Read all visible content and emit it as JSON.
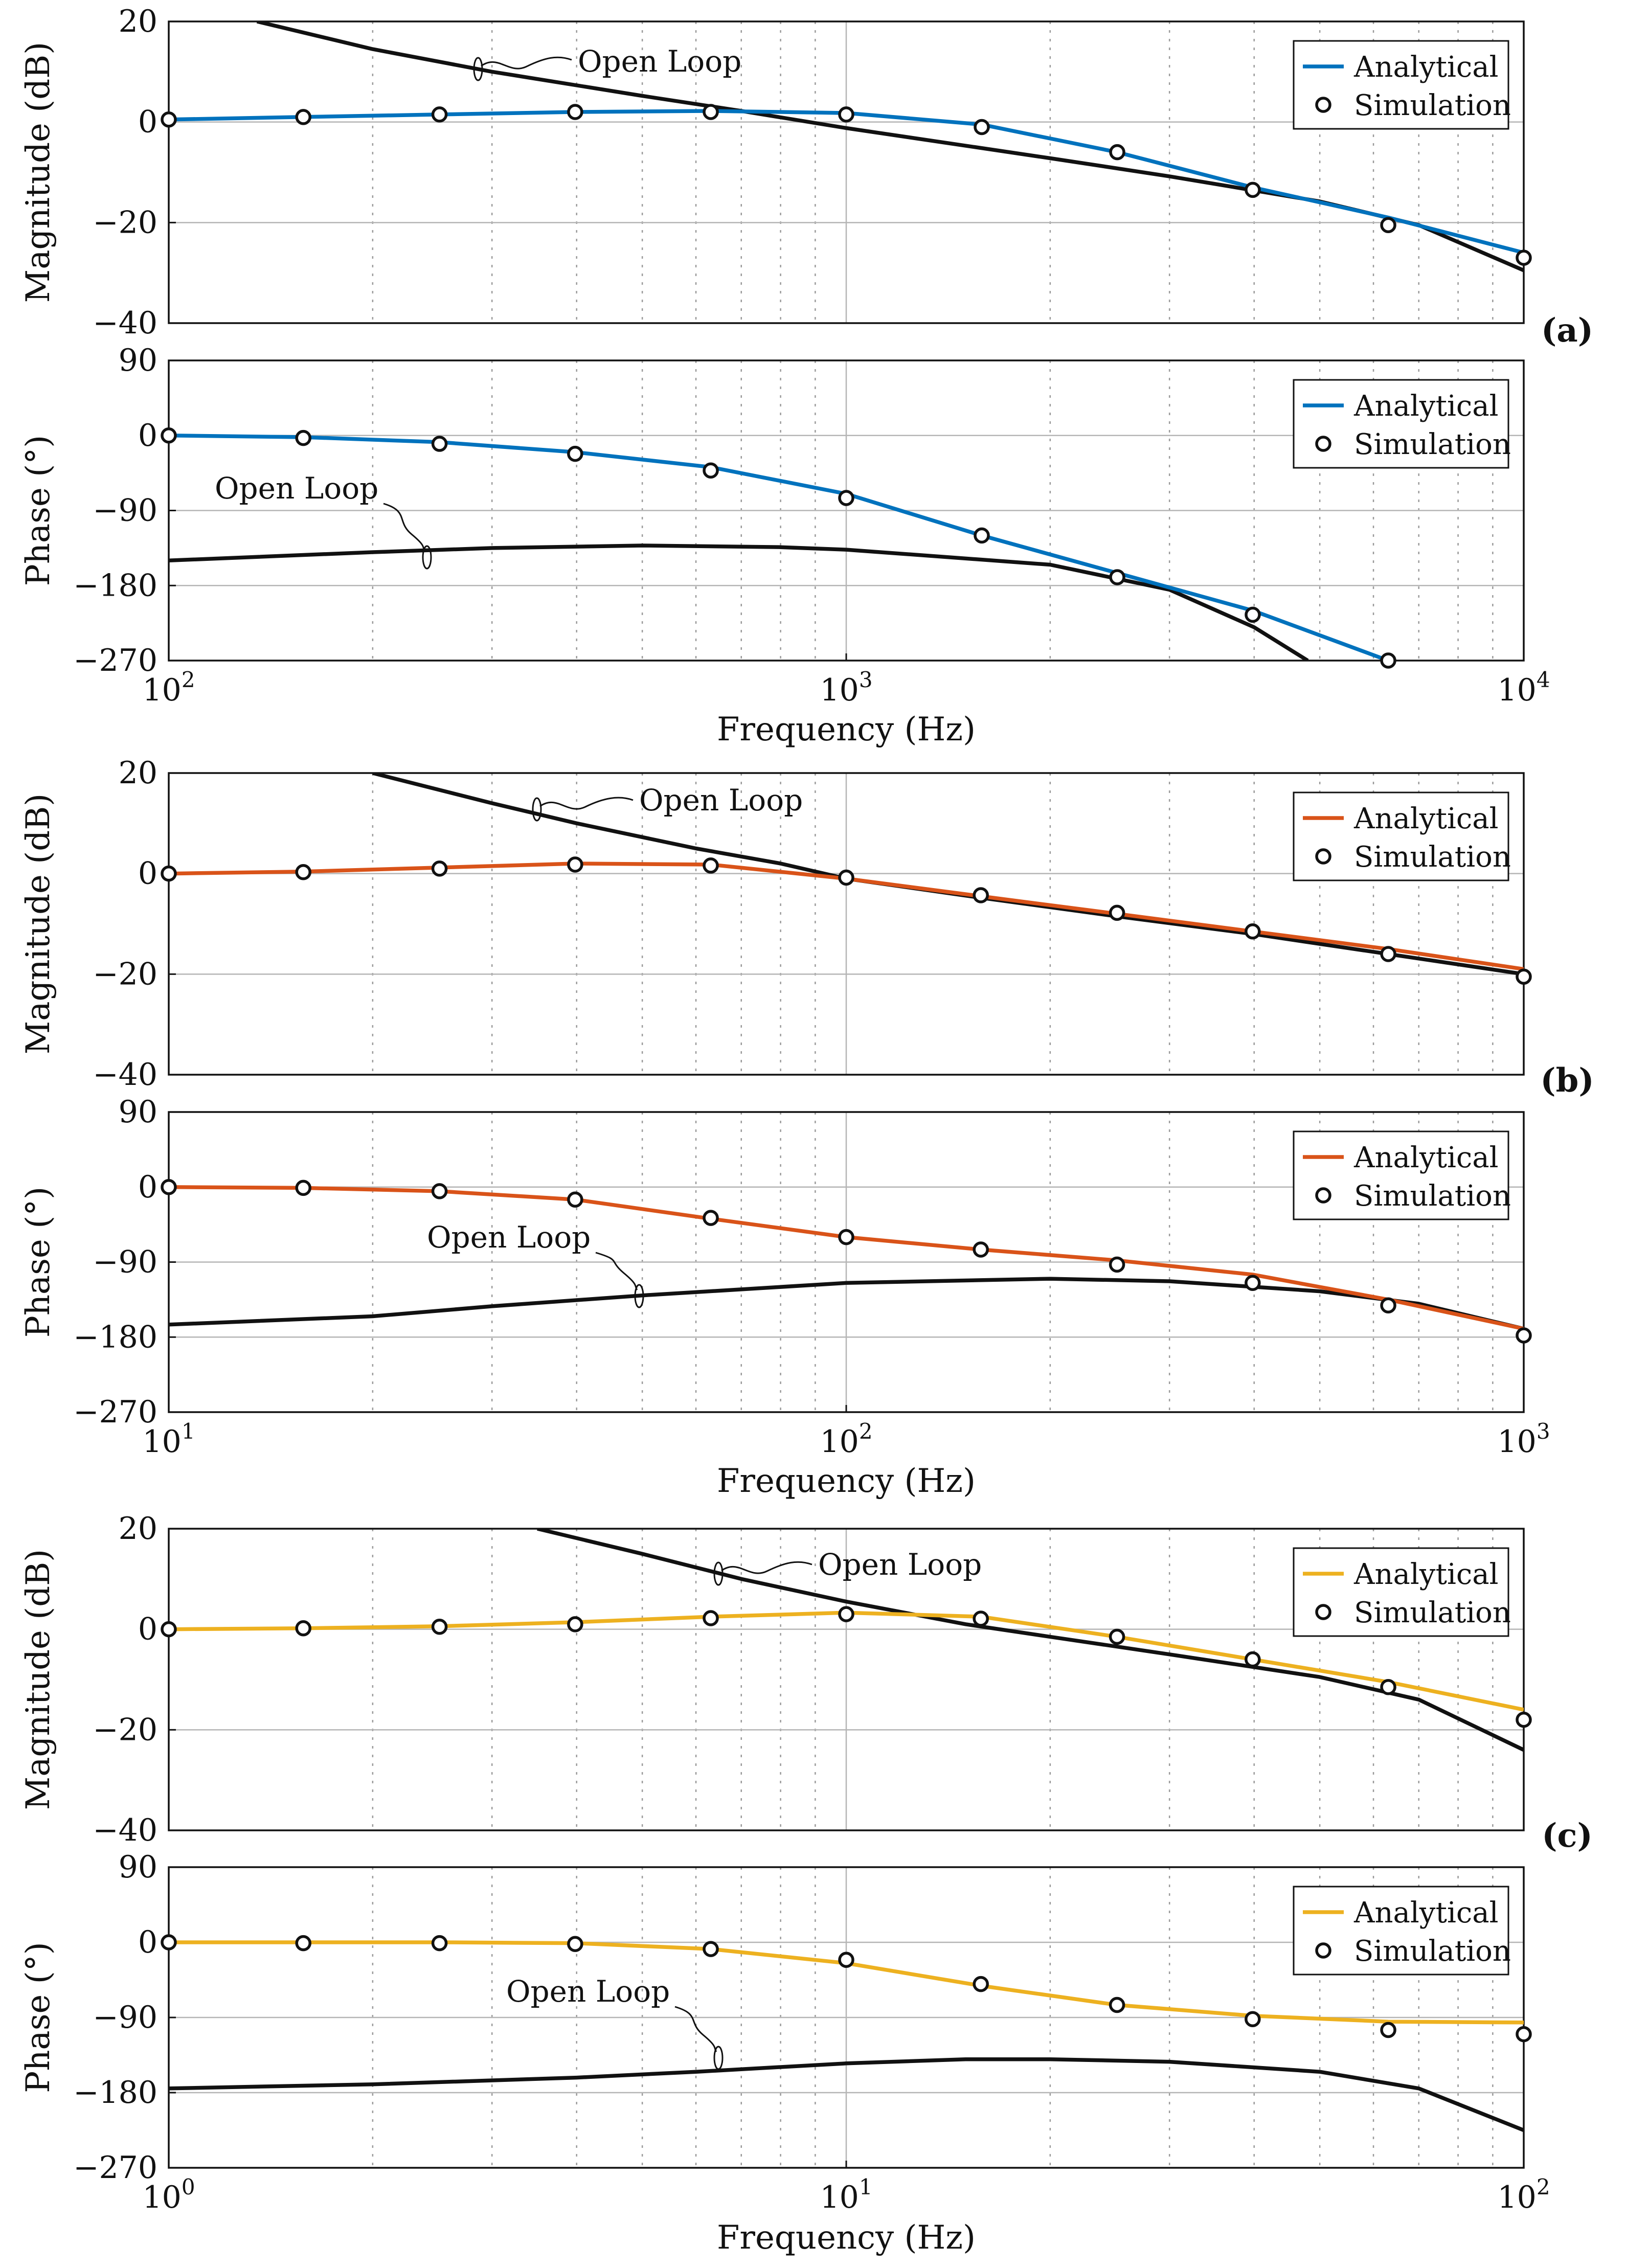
{
  "figure": {
    "panels": [
      {
        "label": "(a)",
        "xlabel": "Frequency (Hz)",
        "magnitude_ylabel": "Magnitude (dB)",
        "phase_ylabel": "Phase (°)",
        "x_tick_labels": [
          "10",
          "10",
          "10"
        ],
        "x_tick_exponents": [
          "2",
          "3",
          "4"
        ],
        "mag_tick_labels": [
          "20",
          "0",
          "−20",
          "−40"
        ],
        "phase_tick_labels": [
          "90",
          "0",
          "−90",
          "−180",
          "−270"
        ],
        "open_loop_label": "Open Loop",
        "legend": {
          "analytical": "Analytical",
          "simulation": "Simulation"
        }
      },
      {
        "label": "(b)",
        "xlabel": "Frequency (Hz)",
        "magnitude_ylabel": "Magnitude (dB)",
        "phase_ylabel": "Phase (°)",
        "x_tick_labels": [
          "10",
          "10",
          "10"
        ],
        "x_tick_exponents": [
          "1",
          "2",
          "3"
        ],
        "mag_tick_labels": [
          "20",
          "0",
          "−20",
          "−40"
        ],
        "phase_tick_labels": [
          "90",
          "0",
          "−90",
          "−180",
          "−270"
        ],
        "open_loop_label": "Open Loop",
        "legend": {
          "analytical": "Analytical",
          "simulation": "Simulation"
        }
      },
      {
        "label": "(c)",
        "xlabel": "Frequency (Hz)",
        "magnitude_ylabel": "Magnitude (dB)",
        "phase_ylabel": "Phase (°)",
        "x_tick_labels": [
          "10",
          "10",
          "10"
        ],
        "x_tick_exponents": [
          "0",
          "1",
          "2"
        ],
        "mag_tick_labels": [
          "20",
          "0",
          "−20",
          "−40"
        ],
        "phase_tick_labels": [
          "90",
          "0",
          "−90",
          "−180",
          "−270"
        ],
        "open_loop_label": "Open Loop",
        "legend": {
          "analytical": "Analytical",
          "simulation": "Simulation"
        }
      }
    ]
  },
  "chart_data": [
    {
      "panel": "(a)",
      "type": "line",
      "subplot": "magnitude",
      "xscale": "log",
      "xlim": [
        100,
        10000
      ],
      "ylim": [
        -40,
        20
      ],
      "xlabel": "",
      "ylabel": "Magnitude (dB)",
      "series_color": "#0072BD",
      "series": [
        {
          "name": "Analytical",
          "x": [
            100,
            158,
            251,
            398,
            631,
            1000,
            1585,
            2512,
            3981,
            6310,
            10000
          ],
          "values": [
            0.5,
            1.0,
            1.5,
            2.0,
            2.2,
            1.8,
            -0.5,
            -6,
            -13,
            -19,
            -26
          ]
        },
        {
          "name": "Simulation",
          "x": [
            100,
            158,
            251,
            398,
            631,
            1000,
            1585,
            2512,
            3981,
            6310,
            10000
          ],
          "values": [
            0.5,
            1.0,
            1.5,
            2.0,
            2.0,
            1.5,
            -1.0,
            -6,
            -13.5,
            -20.5,
            -27
          ]
        },
        {
          "name": "Open Loop",
          "x": [
            135,
            200,
            300,
            500,
            700,
            1000,
            2000,
            3000,
            5000,
            7000,
            10000
          ],
          "values": [
            20,
            14.5,
            10,
            5.2,
            2.2,
            -1.2,
            -7.2,
            -10.8,
            -15.8,
            -20.5,
            -29.5
          ]
        }
      ]
    },
    {
      "panel": "(a)",
      "type": "line",
      "subplot": "phase",
      "xscale": "log",
      "xlim": [
        100,
        10000
      ],
      "ylim": [
        -270,
        90
      ],
      "xlabel": "Frequency (Hz)",
      "ylabel": "Phase (°)",
      "series_color": "#0072BD",
      "series": [
        {
          "name": "Analytical",
          "x": [
            100,
            158,
            251,
            398,
            631,
            1000,
            1585,
            2512,
            3981,
            6310
          ],
          "values": [
            0,
            -2,
            -8,
            -20,
            -38,
            -70,
            -120,
            -165,
            -210,
            -270
          ]
        },
        {
          "name": "Simulation",
          "x": [
            100,
            158,
            251,
            398,
            631,
            1000,
            1585,
            2512,
            3981,
            6310
          ],
          "values": [
            0,
            -3,
            -10,
            -22,
            -42,
            -75,
            -120,
            -170,
            -215,
            -270
          ]
        },
        {
          "name": "Open Loop",
          "x": [
            100,
            200,
            300,
            500,
            800,
            1000,
            2000,
            3000,
            4000,
            4800
          ],
          "values": [
            -150,
            -140,
            -135,
            -132,
            -134,
            -137,
            -155,
            -185,
            -230,
            -270
          ]
        }
      ]
    },
    {
      "panel": "(b)",
      "type": "line",
      "subplot": "magnitude",
      "xscale": "log",
      "xlim": [
        10,
        1000
      ],
      "ylim": [
        -40,
        20
      ],
      "xlabel": "",
      "ylabel": "Magnitude (dB)",
      "series_color": "#D95319",
      "series": [
        {
          "name": "Analytical",
          "x": [
            10,
            15.8,
            25.1,
            39.8,
            63.1,
            100,
            158,
            251,
            398,
            631,
            1000
          ],
          "values": [
            0,
            0.4,
            1.2,
            2.0,
            1.8,
            -1.0,
            -4.5,
            -8,
            -11.5,
            -15,
            -19
          ]
        },
        {
          "name": "Simulation",
          "x": [
            10,
            15.8,
            25.1,
            39.8,
            63.1,
            100,
            158,
            251,
            398,
            631,
            1000
          ],
          "values": [
            0,
            0.3,
            1.0,
            1.8,
            1.6,
            -0.8,
            -4.3,
            -7.8,
            -11.5,
            -16,
            -20.5
          ]
        },
        {
          "name": "Open Loop",
          "x": [
            20,
            30,
            40,
            60,
            80,
            100,
            158,
            251,
            398,
            631,
            1000
          ],
          "values": [
            20,
            14,
            10,
            5,
            2,
            -1,
            -4.8,
            -8.5,
            -12,
            -16,
            -20
          ]
        }
      ]
    },
    {
      "panel": "(b)",
      "type": "line",
      "subplot": "phase",
      "xscale": "log",
      "xlim": [
        10,
        1000
      ],
      "ylim": [
        -270,
        90
      ],
      "xlabel": "Frequency (Hz)",
      "ylabel": "Phase (°)",
      "series_color": "#D95319",
      "series": [
        {
          "name": "Analytical",
          "x": [
            10,
            15.8,
            25.1,
            39.8,
            63.1,
            100,
            158,
            251,
            398,
            631,
            1000
          ],
          "values": [
            0,
            -1,
            -5,
            -15,
            -38,
            -60,
            -75,
            -88,
            -105,
            -135,
            -170
          ]
        },
        {
          "name": "Simulation",
          "x": [
            10,
            15.8,
            25.1,
            39.8,
            63.1,
            100,
            158,
            251,
            398,
            631,
            1000
          ],
          "values": [
            0,
            -1,
            -5,
            -15,
            -37,
            -60,
            -75,
            -93,
            -115,
            -142,
            -178
          ]
        },
        {
          "name": "Open Loop",
          "x": [
            10,
            20,
            30,
            50,
            100,
            200,
            300,
            500,
            700,
            1000
          ],
          "values": [
            -165,
            -155,
            -143,
            -130,
            -115,
            -110,
            -113,
            -125,
            -140,
            -170
          ]
        }
      ]
    },
    {
      "panel": "(c)",
      "type": "line",
      "subplot": "magnitude",
      "xscale": "log",
      "xlim": [
        1,
        100
      ],
      "ylim": [
        -40,
        20
      ],
      "xlabel": "",
      "ylabel": "Magnitude (dB)",
      "series_color": "#EDB120",
      "series": [
        {
          "name": "Analytical",
          "x": [
            1,
            1.58,
            2.51,
            3.98,
            6.31,
            10,
            15.8,
            25.1,
            39.8,
            63.1,
            100
          ],
          "values": [
            0,
            0.2,
            0.6,
            1.4,
            2.5,
            3.3,
            2.5,
            -1.5,
            -6,
            -10.5,
            -16
          ]
        },
        {
          "name": "Simulation",
          "x": [
            1,
            1.58,
            2.51,
            3.98,
            6.31,
            10,
            15.8,
            25.1,
            39.8,
            63.1,
            100
          ],
          "values": [
            0,
            0.2,
            0.5,
            1.0,
            2.2,
            3.0,
            2.1,
            -1.5,
            -6,
            -11.5,
            -18
          ]
        },
        {
          "name": "Open Loop",
          "x": [
            3.5,
            5,
            7,
            10,
            15,
            20,
            30,
            50,
            70,
            100
          ],
          "values": [
            20,
            15,
            10,
            5.5,
            1,
            -1.5,
            -5,
            -9.5,
            -14,
            -24
          ]
        }
      ]
    },
    {
      "panel": "(c)",
      "type": "line",
      "subplot": "phase",
      "xscale": "log",
      "xlim": [
        1,
        100
      ],
      "ylim": [
        -270,
        90
      ],
      "xlabel": "Frequency (Hz)",
      "ylabel": "Phase (°)",
      "series_color": "#EDB120",
      "series": [
        {
          "name": "Analytical",
          "x": [
            1,
            1.58,
            2.51,
            3.98,
            6.31,
            10,
            15.8,
            25.1,
            39.8,
            63.1,
            100
          ],
          "values": [
            0,
            0,
            0,
            -1,
            -8,
            -25,
            -52,
            -75,
            -88,
            -95,
            -96
          ]
        },
        {
          "name": "Simulation",
          "x": [
            1,
            1.58,
            2.51,
            3.98,
            6.31,
            10,
            15.8,
            25.1,
            39.8,
            63.1,
            100
          ],
          "values": [
            0,
            -1,
            -1,
            -2,
            -8,
            -21,
            -50,
            -75,
            -92,
            -105,
            -110
          ]
        },
        {
          "name": "Open Loop",
          "x": [
            1,
            2,
            4,
            6,
            10,
            15,
            20,
            30,
            50,
            70,
            100
          ],
          "values": [
            -175,
            -170,
            -162,
            -155,
            -145,
            -140,
            -140,
            -143,
            -155,
            -175,
            -225
          ]
        }
      ]
    }
  ]
}
